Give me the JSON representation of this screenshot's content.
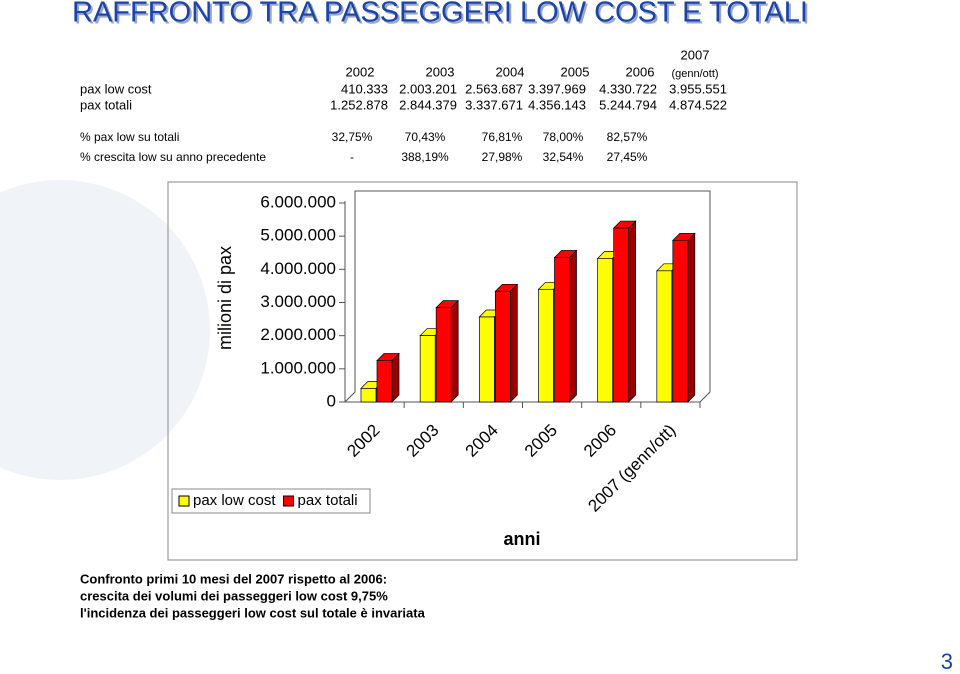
{
  "title": "RAFFRONTO TRA PASSEGGERI LOW COST E TOTALI",
  "table": {
    "header": [
      "2002",
      "2003",
      "2004",
      "2005",
      "2006",
      "2007"
    ],
    "header_note": "(genn/ott)",
    "rows": [
      [
        "pax low cost",
        "410.333",
        "2.003.201",
        "2.563.687",
        "3.397.969",
        "4.330.722",
        "3.955.551"
      ],
      [
        "pax totali",
        "1.252.878",
        "2.844.379",
        "3.337.671",
        "4.356.143",
        "5.244.794",
        "4.874.522"
      ]
    ]
  },
  "ratios": {
    "rows": [
      [
        "% pax low su totali",
        "32,75%",
        "70,43%",
        "76,81%",
        "78,00%",
        "82,57%"
      ],
      [
        "% crescita low su anno precedente",
        "-",
        "388,19%",
        "27,98%",
        "32,54%",
        "27,45%"
      ]
    ]
  },
  "chart_data": {
    "type": "bar3d",
    "y_label": "milioni di pax",
    "x_label": "anni",
    "categories": [
      "2002",
      "2003",
      "2004",
      "2005",
      "2006",
      "2007 (genn/ott)"
    ],
    "series": [
      {
        "name": "pax low cost",
        "color": "#ffff00",
        "values": [
          410333,
          2003201,
          2563687,
          3397969,
          4330722,
          3955551
        ]
      },
      {
        "name": "pax totali",
        "color": "#ff0000",
        "values": [
          1252878,
          2844379,
          3337671,
          4356143,
          5244794,
          4874522
        ]
      }
    ],
    "ylim": [
      0,
      6000000
    ],
    "yticks": [
      0,
      {
        "value": 1000000,
        "label": "1.000.000"
      },
      {
        "value": 2000000,
        "label": "2.000.000"
      },
      {
        "value": 3000000,
        "label": "3.000.000"
      },
      {
        "value": 4000000,
        "label": "4.000.000"
      },
      {
        "value": 5000000,
        "label": "5.000.000"
      },
      {
        "value": 6000000,
        "label": "6.000.000"
      }
    ],
    "legend": "bottom-left"
  },
  "notes": [
    "Confronto primi 10 mesi del 2007 rispetto al 2006:",
    "crescita dei volumi dei passeggeri low cost 9,75%",
    "l'incidenza dei passeggeri low cost sul totale è invariata"
  ],
  "page_number": "3"
}
